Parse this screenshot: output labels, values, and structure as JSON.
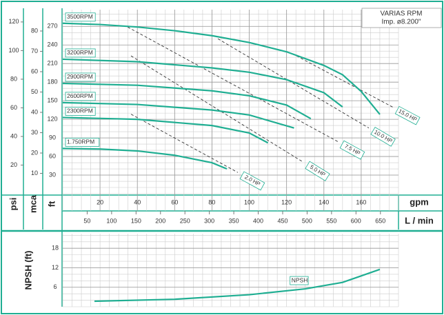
{
  "chart_data": [
    {
      "type": "line",
      "legend_title": "VARIAS RPM",
      "legend_subtitle": "Imp. ø8.200\"",
      "xlabel": "gpm",
      "x2label": "L / min",
      "ylabel": "ft",
      "psi_axis": {
        "label": "psi",
        "lim": [
          0,
          128.6
        ],
        "ticks": [
          20,
          40,
          60,
          80,
          100,
          120
        ]
      },
      "mca_axis": {
        "label": "mca",
        "lim": [
          0,
          90.5
        ],
        "ticks": [
          10,
          20,
          30,
          40,
          50,
          60,
          70,
          80
        ]
      },
      "xlim": [
        0,
        180
      ],
      "xticks": [
        20,
        40,
        60,
        80,
        100,
        120,
        140,
        160
      ],
      "x2lim": [
        0,
        687
      ],
      "x2ticks": [
        50,
        100,
        150,
        200,
        250,
        300,
        350,
        400,
        450,
        500,
        550,
        600,
        650
      ],
      "ylim": [
        0,
        297
      ],
      "yticks": [
        30,
        60,
        90,
        120,
        150,
        180,
        210,
        240,
        270
      ],
      "grid": true,
      "series": [
        {
          "name": "3500RPM",
          "color": "#1fae92",
          "x": [
            0,
            20,
            40,
            60,
            80,
            100,
            120,
            140,
            150,
            160,
            170
          ],
          "values": [
            275,
            273,
            269,
            263,
            255,
            244,
            229,
            207,
            192,
            165,
            128
          ]
        },
        {
          "name": "3200RPM",
          "color": "#1fae92",
          "x": [
            0,
            40,
            80,
            100,
            120,
            140,
            150
          ],
          "values": [
            217,
            213,
            203,
            196,
            184,
            163,
            140
          ]
        },
        {
          "name": "2900RPM",
          "color": "#1fae92",
          "x": [
            0,
            40,
            80,
            100,
            120,
            133
          ],
          "values": [
            178,
            175,
            166,
            158,
            143,
            121
          ]
        },
        {
          "name": "2600RPM",
          "color": "#1fae92",
          "x": [
            0,
            40,
            80,
            100,
            124
          ],
          "values": [
            147,
            144,
            135,
            127,
            106
          ]
        },
        {
          "name": "2300RPM",
          "color": "#1fae92",
          "x": [
            0,
            40,
            80,
            100,
            110
          ],
          "values": [
            123,
            120,
            110,
            98,
            82
          ]
        },
        {
          "name": "1.750RPM",
          "color": "#1fae92",
          "x": [
            0,
            20,
            40,
            60,
            80,
            88
          ],
          "values": [
            73,
            72,
            69,
            62,
            50,
            40
          ]
        }
      ],
      "power_lines": [
        {
          "name": "2.0 HP",
          "x": [
            36.6,
            93.9
          ],
          "values": [
            128.3,
            34.2
          ]
        },
        {
          "name": "5.0 HP",
          "x": [
            36.6,
            129
          ],
          "values": [
            222.4,
            50.8
          ]
        },
        {
          "name": "7.5 HP",
          "x": [
            34.8,
            147.5
          ],
          "values": [
            268.9,
            84
          ]
        },
        {
          "name": "10.0 HP",
          "x": [
            83.2,
            164.1
          ],
          "values": [
            250,
            106
          ]
        },
        {
          "name": "15.0 HP",
          "x": [
            125.3,
            177.1
          ],
          "values": [
            222.4,
            139.4
          ]
        }
      ]
    },
    {
      "type": "line",
      "ylabel": "NPSH (ft)",
      "xlim": [
        0,
        180
      ],
      "ylim": [
        0,
        22.5
      ],
      "yticks": [
        6,
        12,
        18
      ],
      "grid": true,
      "series": [
        {
          "name": "NPSH",
          "color": "#1fae92",
          "x": [
            17,
            60,
            100,
            130,
            150,
            170
          ],
          "values": [
            1.7,
            2.3,
            3.7,
            5.5,
            7.5,
            11.5
          ]
        }
      ]
    }
  ]
}
